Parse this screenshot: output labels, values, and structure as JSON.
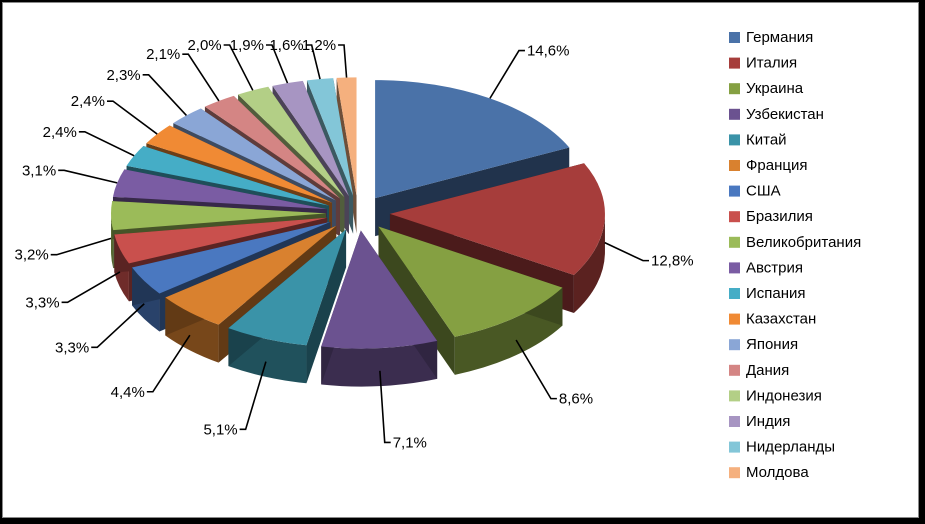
{
  "chart_data": {
    "type": "pie",
    "title": "",
    "legend_position": "right",
    "slices": [
      {
        "label": "Германия",
        "value": 14.6,
        "display": "14,6%",
        "color": "#4a72a8"
      },
      {
        "label": "Италия",
        "value": 12.8,
        "display": "12,8%",
        "color": "#a63d3b"
      },
      {
        "label": "Украина",
        "value": 8.6,
        "display": "8,6%",
        "color": "#85a042"
      },
      {
        "label": "Узбекистан",
        "value": 7.1,
        "display": "7,1%",
        "color": "#6b5290"
      },
      {
        "label": "Китай",
        "value": 5.1,
        "display": "5,1%",
        "color": "#3a93a8"
      },
      {
        "label": "Франция",
        "value": 4.4,
        "display": "4,4%",
        "color": "#d9812f"
      },
      {
        "label": "США",
        "value": 3.3,
        "display": "3,3%",
        "color": "#4a78c0"
      },
      {
        "label": "Бразилия",
        "value": 3.3,
        "display": "3,3%",
        "color": "#c9504d"
      },
      {
        "label": "Великобритания",
        "value": 3.2,
        "display": "3,2%",
        "color": "#9bbb59"
      },
      {
        "label": "Австрия",
        "value": 3.1,
        "display": "3,1%",
        "color": "#7a5ca3"
      },
      {
        "label": "Испания",
        "value": 2.4,
        "display": "2,4%",
        "color": "#45adc6"
      },
      {
        "label": "Казахстан",
        "value": 2.4,
        "display": "2,4%",
        "color": "#f08a34"
      },
      {
        "label": "Япония",
        "value": 2.3,
        "display": "2,3%",
        "color": "#8aa6d6"
      },
      {
        "label": "Дания",
        "value": 2.1,
        "display": "2,1%",
        "color": "#d48584"
      },
      {
        "label": "Индонезия",
        "value": 2.0,
        "display": "2,0%",
        "color": "#b3cf86"
      },
      {
        "label": "Индия",
        "value": 1.9,
        "display": "1,9%",
        "color": "#a795c2"
      },
      {
        "label": "Нидерланды",
        "value": 1.6,
        "display": "1,6%",
        "color": "#83c6d8"
      },
      {
        "label": "Молдова",
        "value": 1.2,
        "display": "1,2%",
        "color": "#f5b07e"
      }
    ]
  }
}
